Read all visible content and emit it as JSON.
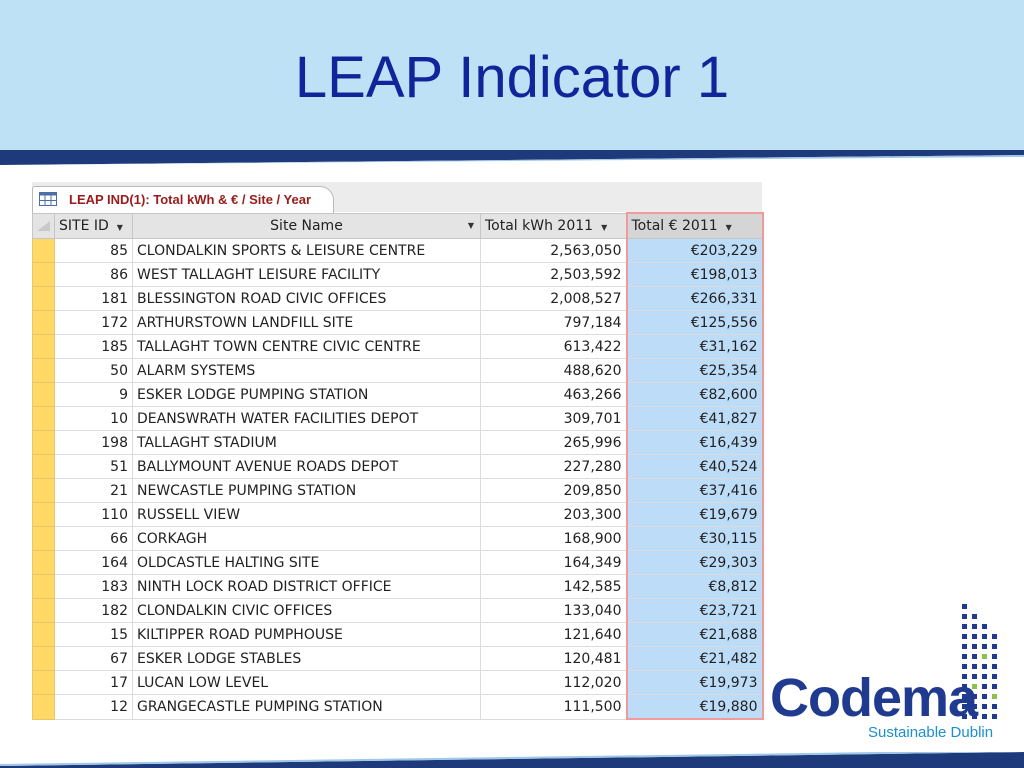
{
  "slide": {
    "title": "LEAP Indicator 1"
  },
  "tab": {
    "label": "LEAP IND(1): Total kWh & € / Site / Year",
    "icon": "table-icon"
  },
  "columns": [
    "SITE ID",
    "Site Name",
    "Total kWh 2011",
    "Total € 2011"
  ],
  "rows": [
    {
      "id": "85",
      "name": "CLONDALKIN SPORTS & LEISURE CENTRE",
      "kwh": "2,563,050",
      "eur": "€203,229"
    },
    {
      "id": "86",
      "name": "WEST TALLAGHT LEISURE FACILITY",
      "kwh": "2,503,592",
      "eur": "€198,013"
    },
    {
      "id": "181",
      "name": "BLESSINGTON ROAD CIVIC OFFICES",
      "kwh": "2,008,527",
      "eur": "€266,331"
    },
    {
      "id": "172",
      "name": "ARTHURSTOWN LANDFILL SITE",
      "kwh": "797,184",
      "eur": "€125,556"
    },
    {
      "id": "185",
      "name": "TALLAGHT TOWN CENTRE CIVIC CENTRE",
      "kwh": "613,422",
      "eur": "€31,162"
    },
    {
      "id": "50",
      "name": "ALARM SYSTEMS",
      "kwh": "488,620",
      "eur": "€25,354"
    },
    {
      "id": "9",
      "name": "ESKER LODGE PUMPING STATION",
      "kwh": "463,266",
      "eur": "€82,600"
    },
    {
      "id": "10",
      "name": "DEANSWRATH WATER FACILITIES DEPOT",
      "kwh": "309,701",
      "eur": "€41,827"
    },
    {
      "id": "198",
      "name": "TALLAGHT STADIUM",
      "kwh": "265,996",
      "eur": "€16,439"
    },
    {
      "id": "51",
      "name": "BALLYMOUNT AVENUE ROADS DEPOT",
      "kwh": "227,280",
      "eur": "€40,524"
    },
    {
      "id": "21",
      "name": "NEWCASTLE PUMPING STATION",
      "kwh": "209,850",
      "eur": "€37,416"
    },
    {
      "id": "110",
      "name": "RUSSELL VIEW",
      "kwh": "203,300",
      "eur": "€19,679"
    },
    {
      "id": "66",
      "name": "CORKAGH",
      "kwh": "168,900",
      "eur": "€30,115"
    },
    {
      "id": "164",
      "name": "OLDCASTLE HALTING SITE",
      "kwh": "164,349",
      "eur": "€29,303"
    },
    {
      "id": "183",
      "name": "NINTH LOCK ROAD DISTRICT OFFICE",
      "kwh": "142,585",
      "eur": "€8,812"
    },
    {
      "id": "182",
      "name": "CLONDALKIN CIVIC OFFICES",
      "kwh": "133,040",
      "eur": "€23,721"
    },
    {
      "id": "15",
      "name": "KILTIPPER ROAD PUMPHOUSE",
      "kwh": "121,640",
      "eur": "€21,688"
    },
    {
      "id": "67",
      "name": "ESKER LODGE STABLES",
      "kwh": "120,481",
      "eur": "€21,482"
    },
    {
      "id": "17",
      "name": "LUCAN LOW LEVEL",
      "kwh": "112,020",
      "eur": "€19,973"
    },
    {
      "id": "12",
      "name": "GRANGECASTLE PUMPING STATION",
      "kwh": "111,500",
      "eur": "€19,880"
    }
  ],
  "logo": {
    "wordmark": "Codema",
    "tagline": "Sustainable Dublin"
  },
  "colors": {
    "header_bg": "#bfe1f5",
    "title": "#10259a",
    "band": "#1f3a7a",
    "selected_column": "#bcdcf8",
    "row_selector": "#ffd866",
    "tab_label": "#9b1b1b",
    "logo_blue": "#1f3a8f",
    "logo_cyan": "#1a8fd1",
    "logo_green": "#8bc34a"
  }
}
